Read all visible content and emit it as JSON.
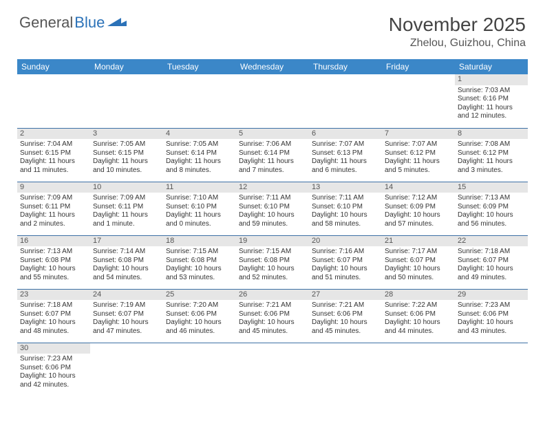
{
  "logo": {
    "text1": "General",
    "text2": "Blue"
  },
  "title": "November 2025",
  "location": "Zhelou, Guizhou, China",
  "colors": {
    "header_bg": "#3b87c8",
    "header_text": "#ffffff",
    "day_num_bg": "#e6e6e6",
    "border": "#3b6fa5",
    "logo_blue": "#2b72b8"
  },
  "weekdays": [
    "Sunday",
    "Monday",
    "Tuesday",
    "Wednesday",
    "Thursday",
    "Friday",
    "Saturday"
  ],
  "weeks": [
    [
      null,
      null,
      null,
      null,
      null,
      null,
      {
        "n": "1",
        "sunrise": "Sunrise: 7:03 AM",
        "sunset": "Sunset: 6:16 PM",
        "daylight": "Daylight: 11 hours and 12 minutes."
      }
    ],
    [
      {
        "n": "2",
        "sunrise": "Sunrise: 7:04 AM",
        "sunset": "Sunset: 6:15 PM",
        "daylight": "Daylight: 11 hours and 11 minutes."
      },
      {
        "n": "3",
        "sunrise": "Sunrise: 7:05 AM",
        "sunset": "Sunset: 6:15 PM",
        "daylight": "Daylight: 11 hours and 10 minutes."
      },
      {
        "n": "4",
        "sunrise": "Sunrise: 7:05 AM",
        "sunset": "Sunset: 6:14 PM",
        "daylight": "Daylight: 11 hours and 8 minutes."
      },
      {
        "n": "5",
        "sunrise": "Sunrise: 7:06 AM",
        "sunset": "Sunset: 6:14 PM",
        "daylight": "Daylight: 11 hours and 7 minutes."
      },
      {
        "n": "6",
        "sunrise": "Sunrise: 7:07 AM",
        "sunset": "Sunset: 6:13 PM",
        "daylight": "Daylight: 11 hours and 6 minutes."
      },
      {
        "n": "7",
        "sunrise": "Sunrise: 7:07 AM",
        "sunset": "Sunset: 6:12 PM",
        "daylight": "Daylight: 11 hours and 5 minutes."
      },
      {
        "n": "8",
        "sunrise": "Sunrise: 7:08 AM",
        "sunset": "Sunset: 6:12 PM",
        "daylight": "Daylight: 11 hours and 3 minutes."
      }
    ],
    [
      {
        "n": "9",
        "sunrise": "Sunrise: 7:09 AM",
        "sunset": "Sunset: 6:11 PM",
        "daylight": "Daylight: 11 hours and 2 minutes."
      },
      {
        "n": "10",
        "sunrise": "Sunrise: 7:09 AM",
        "sunset": "Sunset: 6:11 PM",
        "daylight": "Daylight: 11 hours and 1 minute."
      },
      {
        "n": "11",
        "sunrise": "Sunrise: 7:10 AM",
        "sunset": "Sunset: 6:10 PM",
        "daylight": "Daylight: 11 hours and 0 minutes."
      },
      {
        "n": "12",
        "sunrise": "Sunrise: 7:11 AM",
        "sunset": "Sunset: 6:10 PM",
        "daylight": "Daylight: 10 hours and 59 minutes."
      },
      {
        "n": "13",
        "sunrise": "Sunrise: 7:11 AM",
        "sunset": "Sunset: 6:10 PM",
        "daylight": "Daylight: 10 hours and 58 minutes."
      },
      {
        "n": "14",
        "sunrise": "Sunrise: 7:12 AM",
        "sunset": "Sunset: 6:09 PM",
        "daylight": "Daylight: 10 hours and 57 minutes."
      },
      {
        "n": "15",
        "sunrise": "Sunrise: 7:13 AM",
        "sunset": "Sunset: 6:09 PM",
        "daylight": "Daylight: 10 hours and 56 minutes."
      }
    ],
    [
      {
        "n": "16",
        "sunrise": "Sunrise: 7:13 AM",
        "sunset": "Sunset: 6:08 PM",
        "daylight": "Daylight: 10 hours and 55 minutes."
      },
      {
        "n": "17",
        "sunrise": "Sunrise: 7:14 AM",
        "sunset": "Sunset: 6:08 PM",
        "daylight": "Daylight: 10 hours and 54 minutes."
      },
      {
        "n": "18",
        "sunrise": "Sunrise: 7:15 AM",
        "sunset": "Sunset: 6:08 PM",
        "daylight": "Daylight: 10 hours and 53 minutes."
      },
      {
        "n": "19",
        "sunrise": "Sunrise: 7:15 AM",
        "sunset": "Sunset: 6:08 PM",
        "daylight": "Daylight: 10 hours and 52 minutes."
      },
      {
        "n": "20",
        "sunrise": "Sunrise: 7:16 AM",
        "sunset": "Sunset: 6:07 PM",
        "daylight": "Daylight: 10 hours and 51 minutes."
      },
      {
        "n": "21",
        "sunrise": "Sunrise: 7:17 AM",
        "sunset": "Sunset: 6:07 PM",
        "daylight": "Daylight: 10 hours and 50 minutes."
      },
      {
        "n": "22",
        "sunrise": "Sunrise: 7:18 AM",
        "sunset": "Sunset: 6:07 PM",
        "daylight": "Daylight: 10 hours and 49 minutes."
      }
    ],
    [
      {
        "n": "23",
        "sunrise": "Sunrise: 7:18 AM",
        "sunset": "Sunset: 6:07 PM",
        "daylight": "Daylight: 10 hours and 48 minutes."
      },
      {
        "n": "24",
        "sunrise": "Sunrise: 7:19 AM",
        "sunset": "Sunset: 6:07 PM",
        "daylight": "Daylight: 10 hours and 47 minutes."
      },
      {
        "n": "25",
        "sunrise": "Sunrise: 7:20 AM",
        "sunset": "Sunset: 6:06 PM",
        "daylight": "Daylight: 10 hours and 46 minutes."
      },
      {
        "n": "26",
        "sunrise": "Sunrise: 7:21 AM",
        "sunset": "Sunset: 6:06 PM",
        "daylight": "Daylight: 10 hours and 45 minutes."
      },
      {
        "n": "27",
        "sunrise": "Sunrise: 7:21 AM",
        "sunset": "Sunset: 6:06 PM",
        "daylight": "Daylight: 10 hours and 45 minutes."
      },
      {
        "n": "28",
        "sunrise": "Sunrise: 7:22 AM",
        "sunset": "Sunset: 6:06 PM",
        "daylight": "Daylight: 10 hours and 44 minutes."
      },
      {
        "n": "29",
        "sunrise": "Sunrise: 7:23 AM",
        "sunset": "Sunset: 6:06 PM",
        "daylight": "Daylight: 10 hours and 43 minutes."
      }
    ],
    [
      {
        "n": "30",
        "sunrise": "Sunrise: 7:23 AM",
        "sunset": "Sunset: 6:06 PM",
        "daylight": "Daylight: 10 hours and 42 minutes."
      },
      null,
      null,
      null,
      null,
      null,
      null
    ]
  ]
}
